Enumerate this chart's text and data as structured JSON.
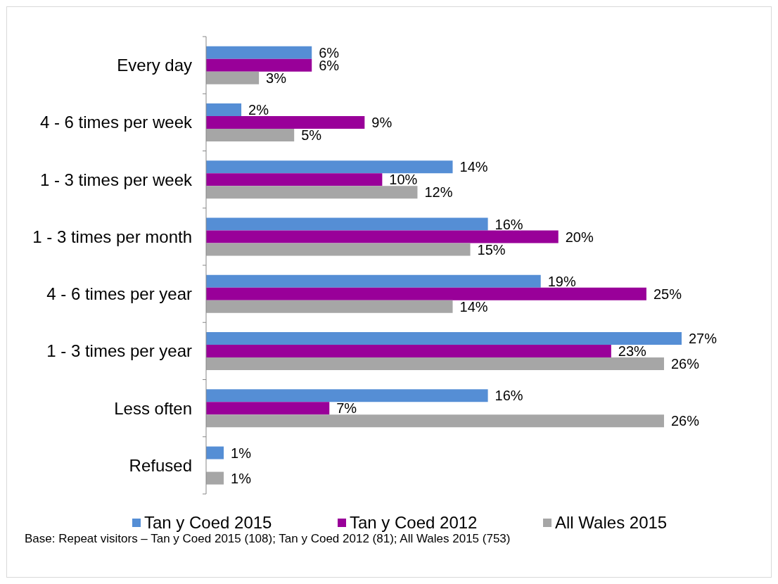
{
  "chart_data": {
    "type": "bar",
    "orientation": "horizontal",
    "categories": [
      "Every day",
      "4 - 6 times per week",
      "1 - 3 times per week",
      "1 - 3 times per month",
      "4 - 6 times per year",
      "1 - 3 times per year",
      "Less often",
      "Refused"
    ],
    "series": [
      {
        "name": "Tan y Coed 2015",
        "color": "#558ed5",
        "values": [
          6,
          2,
          14,
          16,
          19,
          27,
          16,
          1
        ],
        "value_labels": [
          "6%",
          "2%",
          "14%",
          "16%",
          "19%",
          "27%",
          "16%",
          "1%"
        ]
      },
      {
        "name": "Tan y Coed 2012",
        "color": "#990099",
        "values": [
          6,
          9,
          10,
          20,
          25,
          23,
          7,
          null
        ],
        "value_labels": [
          "6%",
          "9%",
          "10%",
          "20%",
          "25%",
          "23%",
          "7%",
          null
        ]
      },
      {
        "name": "All Wales 2015",
        "color": "#a6a6a6",
        "values": [
          3,
          5,
          12,
          15,
          14,
          26,
          26,
          1
        ],
        "value_labels": [
          "3%",
          "5%",
          "12%",
          "15%",
          "14%",
          "26%",
          "26%",
          "1%"
        ]
      }
    ],
    "legend": "bottom",
    "tick_labels": "y",
    "annotations": [
      "Base: Repeat visitors – Tan y Coed 2015 (108); Tan y Coed 2012 (81); All Wales 2015 (753)"
    ]
  }
}
